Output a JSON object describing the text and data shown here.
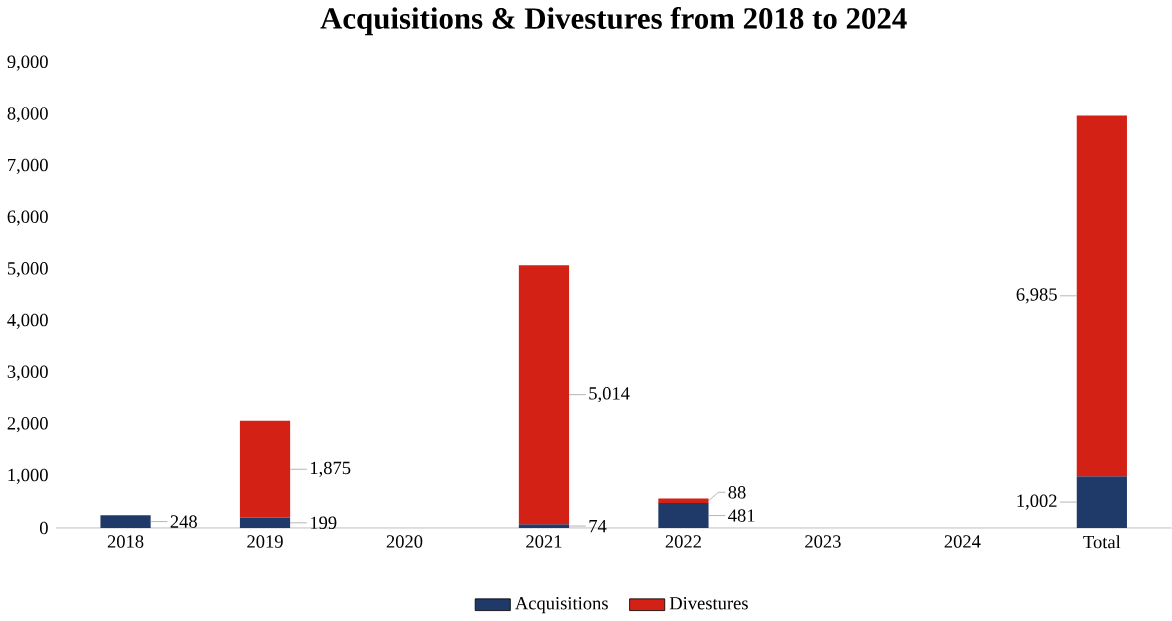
{
  "chart_data": {
    "type": "bar",
    "title": "Acquisitions & Divestures from 2018 to 2024",
    "categories": [
      "2018",
      "2019",
      "2020",
      "2021",
      "2022",
      "2023",
      "2024",
      "Total"
    ],
    "stacked": true,
    "series": [
      {
        "name": "Acquisitions",
        "color": "#1f3a68",
        "values": [
          248,
          199,
          null,
          74,
          481,
          null,
          null,
          1002
        ],
        "value_labels": [
          "248",
          "199",
          null,
          "74",
          "481",
          null,
          null,
          "1,002"
        ]
      },
      {
        "name": "Divestures",
        "color": "#d42115",
        "values": [
          null,
          1875,
          null,
          5014,
          88,
          null,
          null,
          6985
        ],
        "value_labels": [
          null,
          "1,875",
          null,
          "5,014",
          "88",
          null,
          null,
          "6,985"
        ]
      }
    ],
    "ylim": [
      0,
      9000
    ],
    "yticks": [
      {
        "value": 0,
        "label": "0"
      },
      {
        "value": 1000,
        "label": "1,000"
      },
      {
        "value": 2000,
        "label": "2,000"
      },
      {
        "value": 3000,
        "label": "3,000"
      },
      {
        "value": 4000,
        "label": "4,000"
      },
      {
        "value": 5000,
        "label": "5,000"
      },
      {
        "value": 6000,
        "label": "6,000"
      },
      {
        "value": 7000,
        "label": "7,000"
      },
      {
        "value": 8000,
        "label": "8,000"
      },
      {
        "value": 9000,
        "label": "9,000"
      }
    ],
    "legend": "bottom"
  }
}
